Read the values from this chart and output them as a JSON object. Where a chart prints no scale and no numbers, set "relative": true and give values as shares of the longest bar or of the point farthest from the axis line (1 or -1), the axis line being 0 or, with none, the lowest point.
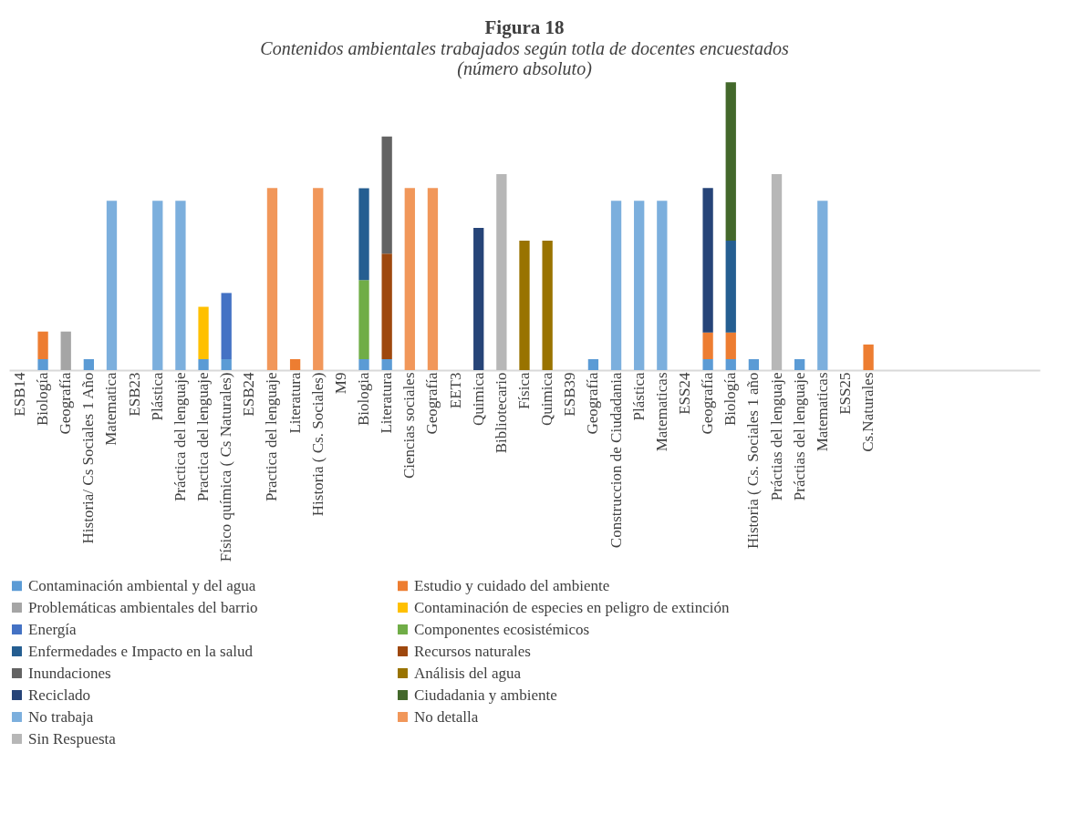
{
  "chart_data": {
    "type": "bar",
    "stacked": true,
    "relative": true,
    "legend": "bottom",
    "grid": false,
    "title": "Figura 18",
    "subtitle": "Contenidos ambientales trabajados según totla de docentes encuestados\n(número absoluto)",
    "categories": [
      "ESB14",
      "Biología",
      "Geografía",
      "Historia/ Cs Sociales 1 Año",
      "Matematica",
      "ESB23",
      "Plástica",
      "Práctica del lenguaje",
      "Practica del lenguaje",
      "Físico química ( Cs Naturales)",
      "ESB24",
      "Practica del lenguaje",
      "Literatura",
      "Historia ( Cs. Sociales)",
      "M9",
      "Biologia",
      "Literatura",
      "Ciencias sociales",
      "Geografía",
      "EET3",
      "Quimica",
      "Bibliotecario",
      "Física",
      "Quimica",
      "ESB39",
      "Geografía",
      "Construccion de Ciudadania",
      "Plástica",
      "Matematicas",
      "ESS24",
      "Geografía",
      "Biología",
      "Historia ( Cs. Sociales  1 año",
      "Práctias del lenguaje",
      "Práctias del lenguaje",
      "Matematicas",
      "ESS25",
      "Cs.Naturales",
      null,
      null,
      null,
      null,
      null,
      null,
      null
    ],
    "series": [
      {
        "name": "Contaminación ambiental y del agua",
        "color": "#5b9bd5",
        "values": [
          null,
          0.038,
          null,
          0.038,
          null,
          null,
          null,
          null,
          0.038,
          0.038,
          null,
          null,
          null,
          null,
          null,
          0.038,
          0.038,
          null,
          null,
          null,
          null,
          null,
          null,
          null,
          null,
          0.038,
          null,
          null,
          null,
          null,
          0.038,
          0.038,
          0.038,
          null,
          0.038,
          null,
          null,
          null,
          null,
          null,
          null,
          null,
          null,
          null,
          null
        ]
      },
      {
        "name": "Estudio y cuidado del ambiente",
        "color": "#ed7d31",
        "values": [
          null,
          0.096,
          null,
          null,
          null,
          null,
          null,
          null,
          null,
          null,
          null,
          null,
          0.038,
          null,
          null,
          null,
          null,
          null,
          null,
          null,
          null,
          null,
          null,
          null,
          null,
          null,
          null,
          null,
          null,
          null,
          0.093,
          0.093,
          null,
          null,
          null,
          null,
          null,
          0.089,
          null,
          null,
          null,
          null,
          null,
          null,
          null
        ]
      },
      {
        "name": "Problemáticas ambientales del barrio",
        "color": "#a5a5a5",
        "values": [
          null,
          null,
          0.134,
          null,
          null,
          null,
          null,
          null,
          null,
          null,
          null,
          null,
          null,
          null,
          null,
          null,
          null,
          null,
          null,
          null,
          null,
          null,
          null,
          null,
          null,
          null,
          null,
          null,
          null,
          null,
          null,
          null,
          null,
          null,
          null,
          null,
          null,
          null,
          null,
          null,
          null,
          null,
          null,
          null,
          null
        ]
      },
      {
        "name": "Contaminación de especies en peligro de extinción",
        "color": "#ffc000",
        "values": [
          null,
          null,
          null,
          null,
          null,
          null,
          null,
          null,
          0.182,
          null,
          null,
          null,
          null,
          null,
          null,
          null,
          null,
          null,
          null,
          null,
          null,
          null,
          null,
          null,
          null,
          null,
          null,
          null,
          null,
          null,
          null,
          null,
          null,
          null,
          null,
          null,
          null,
          null,
          null,
          null,
          null,
          null,
          null,
          null,
          null
        ]
      },
      {
        "name": "Energía",
        "color": "#4472c4",
        "values": [
          null,
          null,
          null,
          null,
          null,
          null,
          null,
          null,
          null,
          0.23,
          null,
          null,
          null,
          null,
          null,
          null,
          null,
          null,
          null,
          null,
          null,
          null,
          null,
          null,
          null,
          null,
          null,
          null,
          null,
          null,
          null,
          null,
          null,
          null,
          null,
          null,
          null,
          null,
          null,
          null,
          null,
          null,
          null,
          null,
          null
        ]
      },
      {
        "name": "Componentes ecosistémicos",
        "color": "#70ad47",
        "values": [
          null,
          null,
          null,
          null,
          null,
          null,
          null,
          null,
          null,
          null,
          null,
          null,
          null,
          null,
          null,
          0.275,
          null,
          null,
          null,
          null,
          null,
          null,
          null,
          null,
          null,
          null,
          null,
          null,
          null,
          null,
          null,
          null,
          null,
          null,
          null,
          null,
          null,
          null,
          null,
          null,
          null,
          null,
          null,
          null,
          null
        ]
      },
      {
        "name": "Enfermedades e Impacto en la salud",
        "color": "#255e91",
        "values": [
          null,
          null,
          null,
          null,
          null,
          null,
          null,
          null,
          null,
          null,
          null,
          null,
          null,
          null,
          null,
          0.319,
          null,
          null,
          null,
          null,
          null,
          null,
          null,
          null,
          null,
          null,
          null,
          null,
          null,
          null,
          null,
          0.319,
          null,
          null,
          null,
          null,
          null,
          null,
          null,
          null,
          null,
          null,
          null,
          null,
          null
        ]
      },
      {
        "name": "Recursos naturales",
        "color": "#9e480e",
        "values": [
          null,
          null,
          null,
          null,
          null,
          null,
          null,
          null,
          null,
          null,
          null,
          null,
          null,
          null,
          null,
          null,
          0.367,
          null,
          null,
          null,
          null,
          null,
          null,
          null,
          null,
          null,
          null,
          null,
          null,
          null,
          null,
          null,
          null,
          null,
          null,
          null,
          null,
          null,
          null,
          null,
          null,
          null,
          null,
          null,
          null
        ]
      },
      {
        "name": "Inundaciones",
        "color": "#636363",
        "values": [
          null,
          null,
          null,
          null,
          null,
          null,
          null,
          null,
          null,
          null,
          null,
          null,
          null,
          null,
          null,
          null,
          0.407,
          null,
          null,
          null,
          null,
          null,
          null,
          null,
          null,
          null,
          null,
          null,
          null,
          null,
          null,
          null,
          null,
          null,
          null,
          null,
          null,
          null,
          null,
          null,
          null,
          null,
          null,
          null,
          null
        ]
      },
      {
        "name": "Análisis del agua",
        "color": "#997300",
        "values": [
          null,
          null,
          null,
          null,
          null,
          null,
          null,
          null,
          null,
          null,
          null,
          null,
          null,
          null,
          null,
          null,
          null,
          null,
          null,
          null,
          null,
          null,
          0.45,
          0.45,
          null,
          null,
          null,
          null,
          null,
          null,
          null,
          null,
          null,
          null,
          null,
          null,
          null,
          null,
          null,
          null,
          null,
          null,
          null,
          null,
          null
        ]
      },
      {
        "name": "Reciclado",
        "color": "#264478",
        "values": [
          null,
          null,
          null,
          null,
          null,
          null,
          null,
          null,
          null,
          null,
          null,
          null,
          null,
          null,
          null,
          null,
          null,
          null,
          null,
          null,
          0.494,
          null,
          null,
          null,
          null,
          null,
          null,
          null,
          null,
          null,
          0.502,
          null,
          null,
          null,
          null,
          null,
          null,
          null,
          null,
          null,
          null,
          null,
          null,
          null,
          null
        ]
      },
      {
        "name": "Ciudadania y ambiente",
        "color": "#43682b",
        "values": [
          null,
          null,
          null,
          null,
          null,
          null,
          null,
          null,
          null,
          null,
          null,
          null,
          null,
          null,
          null,
          null,
          null,
          null,
          null,
          null,
          null,
          null,
          null,
          null,
          null,
          null,
          null,
          null,
          null,
          null,
          null,
          0.55,
          null,
          null,
          null,
          null,
          null,
          null,
          null,
          null,
          null,
          null,
          null,
          null,
          null
        ]
      },
      {
        "name": "No trabaja",
        "color": "#7cafdd",
        "values": [
          null,
          null,
          null,
          null,
          0.588,
          null,
          0.588,
          0.588,
          null,
          null,
          null,
          null,
          null,
          null,
          null,
          null,
          null,
          null,
          null,
          null,
          null,
          null,
          null,
          null,
          null,
          null,
          0.588,
          0.588,
          0.588,
          null,
          null,
          null,
          null,
          null,
          null,
          0.588,
          null,
          null,
          null,
          null,
          null,
          null,
          null,
          null,
          null
        ]
      },
      {
        "name": "No detalla",
        "color": "#f1975a",
        "values": [
          null,
          null,
          null,
          null,
          null,
          null,
          null,
          null,
          null,
          null,
          null,
          0.633,
          null,
          0.633,
          null,
          null,
          null,
          0.633,
          0.633,
          null,
          null,
          null,
          null,
          null,
          null,
          null,
          null,
          null,
          null,
          null,
          null,
          null,
          null,
          null,
          null,
          null,
          null,
          null,
          null,
          null,
          null,
          null,
          null,
          null,
          null
        ]
      },
      {
        "name": "Sin Respuesta",
        "color": "#b7b7b7",
        "values": [
          null,
          null,
          null,
          null,
          null,
          null,
          null,
          null,
          null,
          null,
          null,
          null,
          null,
          null,
          null,
          null,
          null,
          null,
          null,
          null,
          null,
          0.681,
          null,
          null,
          null,
          null,
          null,
          null,
          null,
          null,
          null,
          null,
          null,
          0.681,
          null,
          null,
          null,
          null,
          null,
          null,
          null,
          null,
          null,
          null,
          null
        ]
      }
    ]
  }
}
